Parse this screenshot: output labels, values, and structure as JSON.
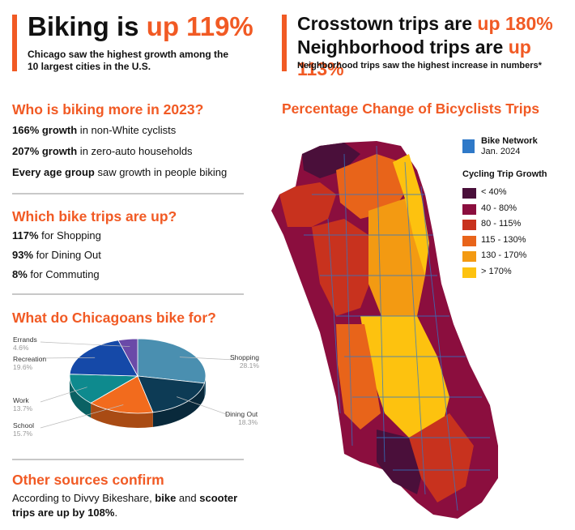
{
  "header_left": {
    "title_prefix": "Biking is ",
    "title_accent": "up 119%",
    "subtitle_line1": "Chicago saw the highest growth among the",
    "subtitle_line2": "10 largest cities in the U.S."
  },
  "header_right": {
    "line1_prefix": "Crosstown trips are ",
    "line1_accent": "up 180%",
    "line2_prefix": "Neighborhood trips are ",
    "line2_accent": "up 113%",
    "subtitle": "Neighborhood trips saw the highest increase in numbers*"
  },
  "who": {
    "title": "Who is biking more in 2023?",
    "items": [
      {
        "bold": "166% growth",
        "rest": " in non-White cyclists"
      },
      {
        "bold": "207% growth",
        "rest": " in zero-auto households"
      },
      {
        "bold": "Every age group",
        "rest": " saw growth in people biking"
      }
    ]
  },
  "which": {
    "title": "Which bike trips are up?",
    "items": [
      {
        "bold": "117%",
        "rest": " for Shopping"
      },
      {
        "bold": "93%",
        "rest": " for Dining Out"
      },
      {
        "bold": "8%",
        "rest": " for Commuting"
      }
    ]
  },
  "what": {
    "title": "What do Chicagoans bike for?"
  },
  "chart_data": {
    "type": "pie",
    "categories": [
      "Shopping",
      "Dining Out",
      "School",
      "Work",
      "Recreation",
      "Errands"
    ],
    "values": [
      28.1,
      18.3,
      15.7,
      13.7,
      19.6,
      4.6
    ],
    "labels": [
      "28.1%",
      "18.3%",
      "15.7%",
      "13.7%",
      "19.6%",
      "4.6%"
    ],
    "colors": [
      "#4a8fb0",
      "#0d3b55",
      "#f26b1d",
      "#0e8a8e",
      "#1549a8",
      "#6a4aa8"
    ]
  },
  "other": {
    "title": "Other sources confirm",
    "line1_a": "According to Divvy Bikeshare, ",
    "line1_b": "bike",
    "line1_c": " and ",
    "line1_d": "scooter",
    "line2_a": "trips are up by 108%",
    "line2_b": "."
  },
  "map": {
    "title": "Percentage Change of Bicyclists Trips",
    "network_label": "Bike Network",
    "network_date": "Jan. 2024",
    "growth_title": "Cycling Trip Growth",
    "legend": [
      {
        "label": "< 40%",
        "color": "#4a0f3a"
      },
      {
        "label": "40 - 80%",
        "color": "#8b0e3e"
      },
      {
        "label": "80 - 115%",
        "color": "#c8321e"
      },
      {
        "label": "115 - 130%",
        "color": "#e8641a"
      },
      {
        "label": "130 - 170%",
        "color": "#f39a12"
      },
      {
        "label": "> 170%",
        "color": "#fdc20f"
      }
    ],
    "network_color": "#2f79c8"
  }
}
